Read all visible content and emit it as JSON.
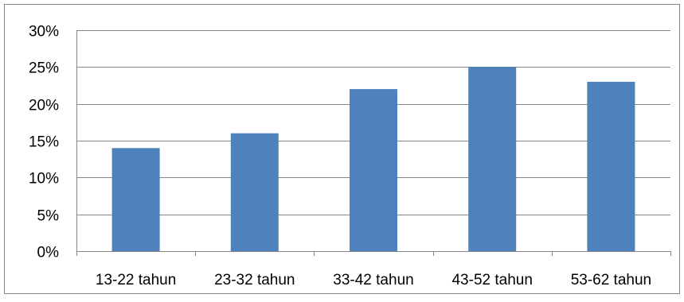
{
  "chart_data": {
    "type": "bar",
    "title": "",
    "xlabel": "",
    "ylabel": "",
    "categories": [
      "13-22 tahun",
      "23-32 tahun",
      "33-42 tahun",
      "43-52 tahun",
      "53-62 tahun"
    ],
    "values": [
      14,
      16,
      22,
      25,
      23
    ],
    "value_format": "percent",
    "ylim": [
      0,
      30
    ],
    "yticks": [
      0,
      5,
      10,
      15,
      20,
      25,
      30
    ],
    "ytick_labels": [
      "0%",
      "5%",
      "10%",
      "15%",
      "20%",
      "25%",
      "30%"
    ],
    "grid": true,
    "legend": "none",
    "colors": {
      "bar": "#4F81BD",
      "bar_edge": "#3F6EA6",
      "grid": "#868686",
      "axis": "#868686",
      "border": "#868686"
    }
  }
}
